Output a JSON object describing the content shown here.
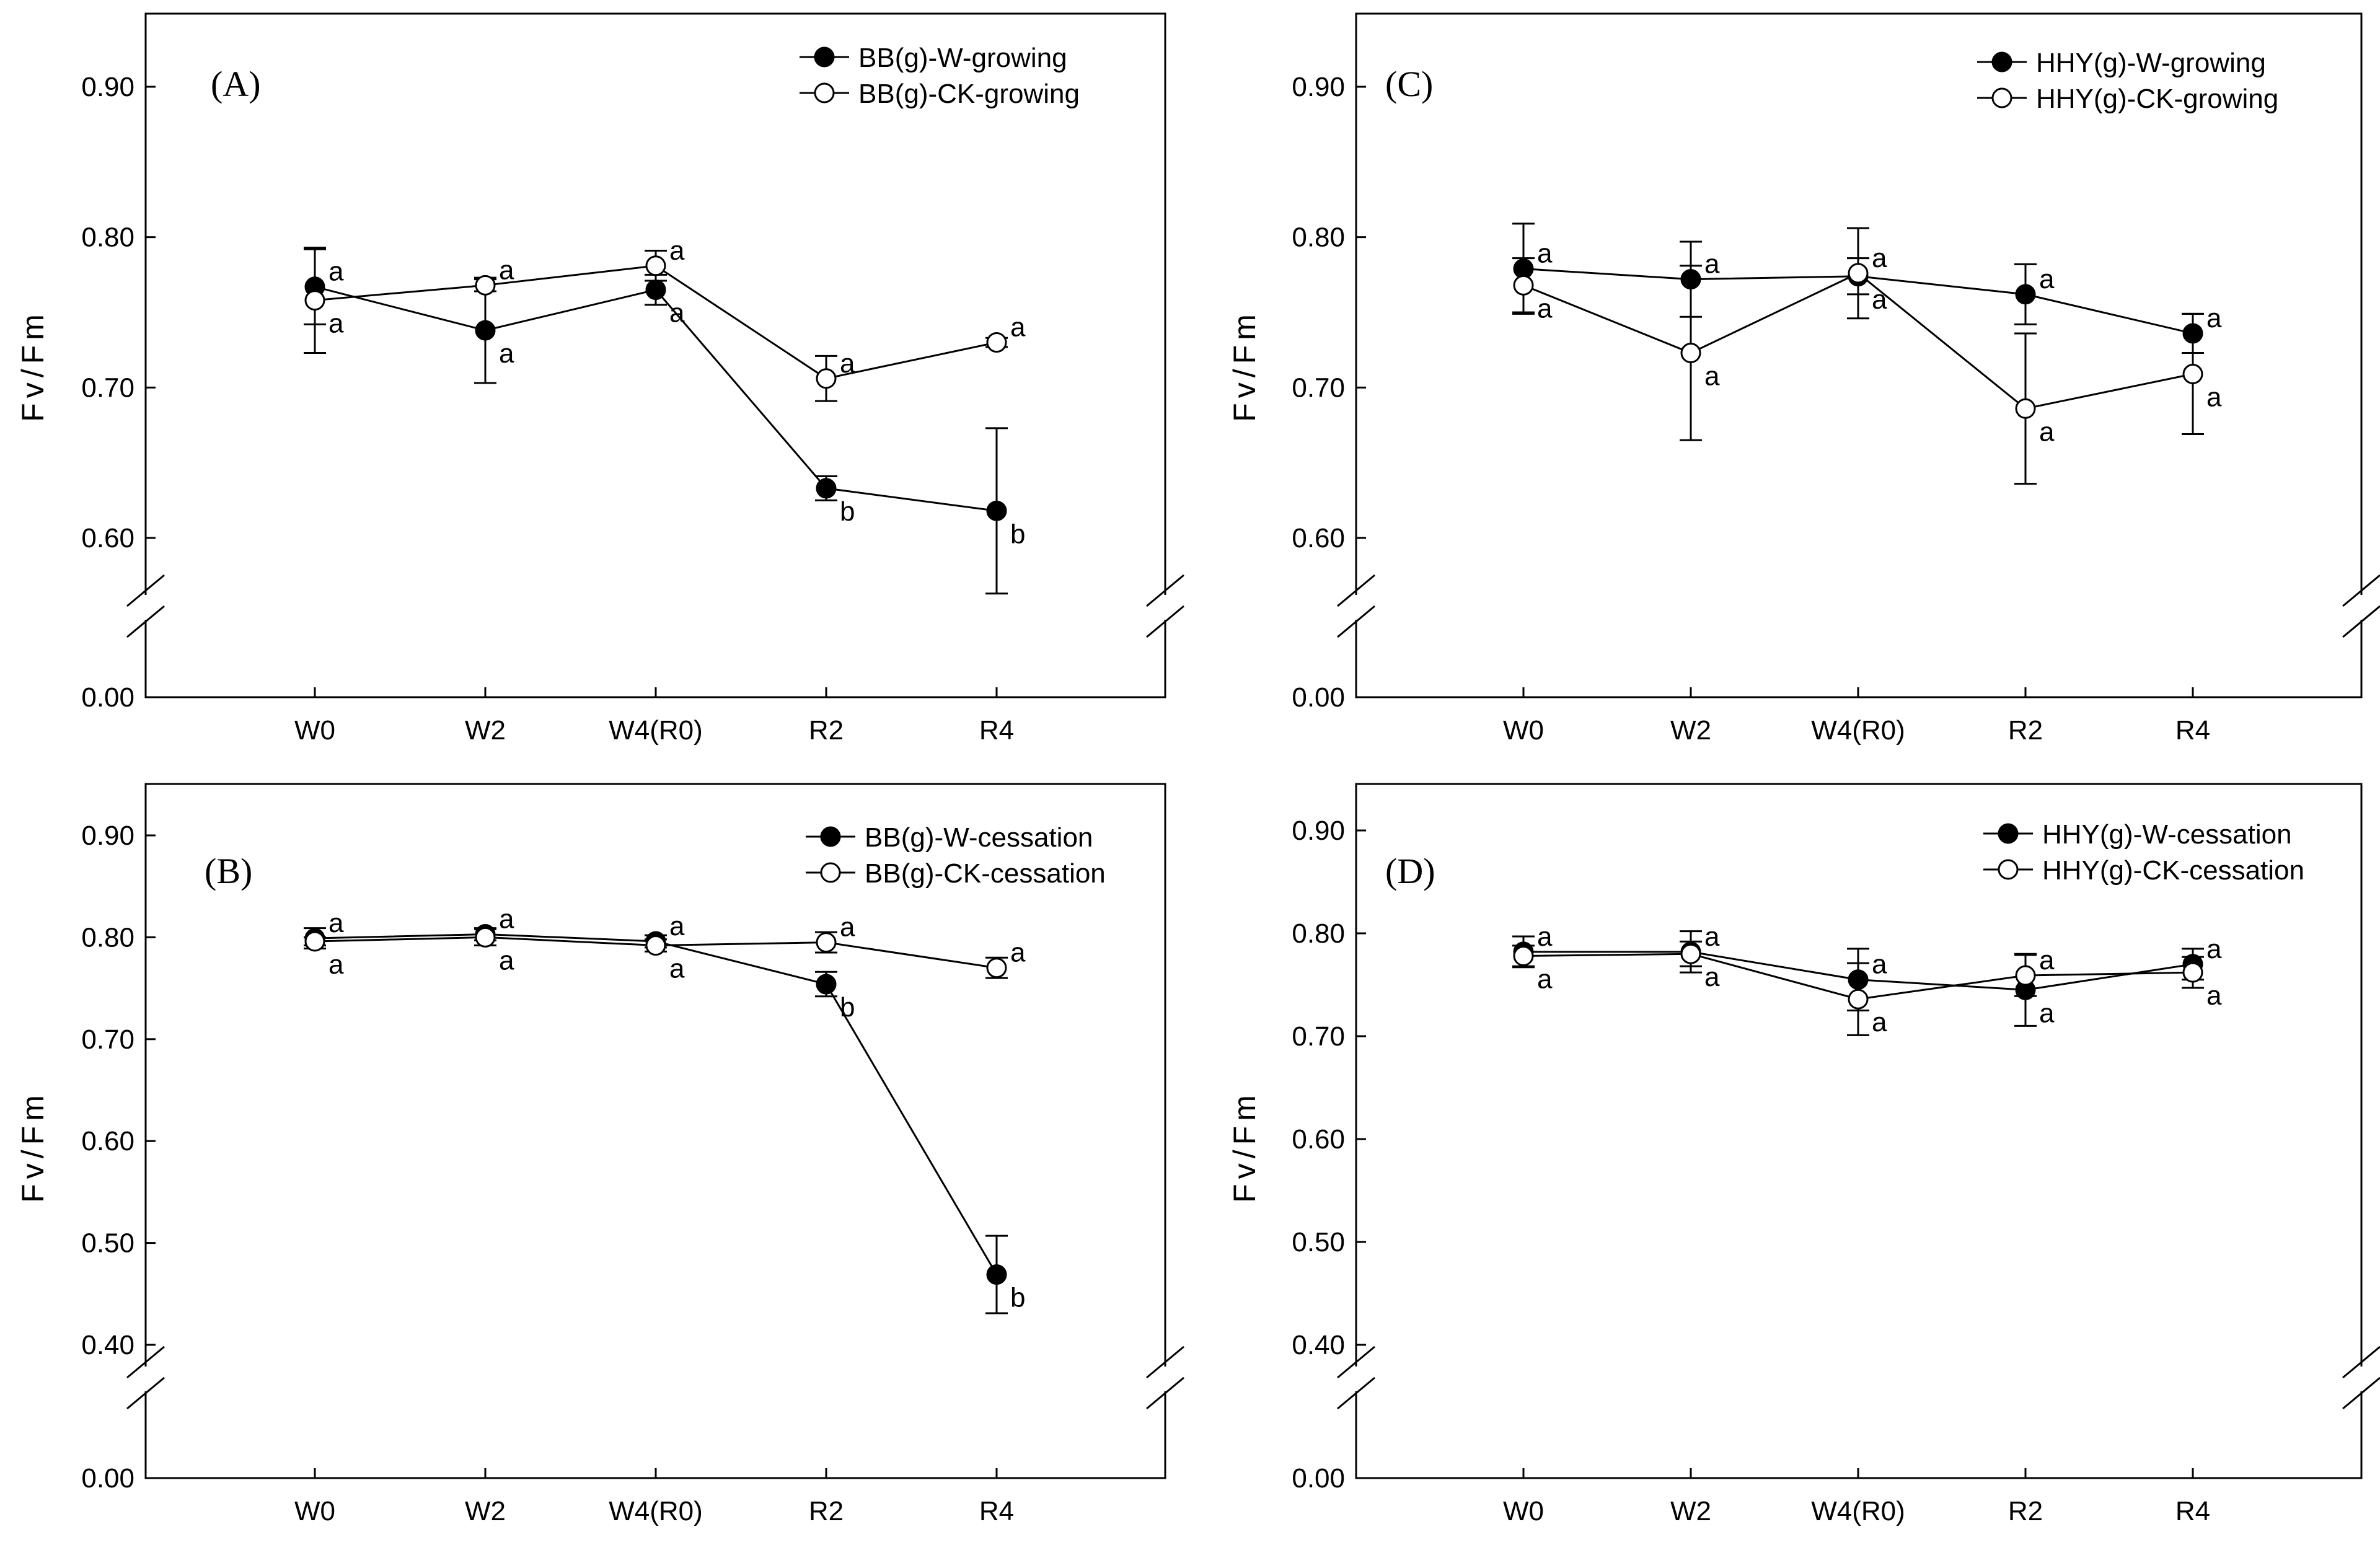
{
  "chart_data": [
    {
      "id": "A",
      "type": "line",
      "panel_label": "(A)",
      "ylabel": "Fv/Fm",
      "xlabel": "",
      "categories": [
        "W0",
        "W2",
        "W4(R0)",
        "R2",
        "R4"
      ],
      "yticks": [
        "0.00",
        "0.60",
        "0.70",
        "0.80",
        "0.90"
      ],
      "ylim_upper": [
        0.55,
        0.95
      ],
      "axis_break": true,
      "legend_position": "top-right",
      "series": [
        {
          "name": "BB(g)-W-growing",
          "marker": "filled-circle",
          "values": [
            0.767,
            0.738,
            0.765,
            0.633,
            0.618
          ],
          "errors": [
            0.025,
            0.035,
            0.01,
            0.008,
            0.055
          ],
          "letters": [
            "a",
            "a",
            "a",
            "b",
            "b"
          ]
        },
        {
          "name": "BB(g)-CK-growing",
          "marker": "open-circle",
          "values": [
            0.758,
            0.768,
            0.781,
            0.706,
            0.73
          ],
          "errors": [
            0.035,
            0.004,
            0.01,
            0.015,
            0.003
          ],
          "letters": [
            "a",
            "a",
            "a",
            "a",
            "a"
          ]
        }
      ]
    },
    {
      "id": "C",
      "type": "line",
      "panel_label": "(C)",
      "ylabel": "Fv/Fm",
      "xlabel": "",
      "categories": [
        "W0",
        "W2",
        "W4(R0)",
        "R2",
        "R4"
      ],
      "yticks": [
        "0.00",
        "0.60",
        "0.70",
        "0.80",
        "0.90"
      ],
      "ylim_upper": [
        0.55,
        0.95
      ],
      "axis_break": true,
      "legend_position": "top-right",
      "series": [
        {
          "name": "HHY(g)-W-growing",
          "marker": "filled-circle",
          "values": [
            0.779,
            0.772,
            0.774,
            0.762,
            0.736
          ],
          "errors": [
            0.03,
            0.025,
            0.012,
            0.02,
            0.013
          ],
          "letters": [
            "a",
            "a",
            "a",
            "a",
            "a"
          ]
        },
        {
          "name": "HHY(g)-CK-growing",
          "marker": "open-circle",
          "values": [
            0.768,
            0.723,
            0.776,
            0.686,
            0.709
          ],
          "errors": [
            0.018,
            0.058,
            0.03,
            0.05,
            0.04
          ],
          "letters": [
            "a",
            "a",
            "a",
            "a",
            "a"
          ]
        }
      ]
    },
    {
      "id": "B",
      "type": "line",
      "panel_label": "(B)",
      "ylabel": "Fv/Fm",
      "xlabel": "",
      "categories": [
        "W0",
        "W2",
        "W4(R0)",
        "R2",
        "R4"
      ],
      "yticks": [
        "0.00",
        "0.40",
        "0.50",
        "0.60",
        "0.70",
        "0.80",
        "0.90"
      ],
      "ylim_upper": [
        0.35,
        0.95
      ],
      "axis_break": true,
      "legend_position": "top-right",
      "series": [
        {
          "name": "BB(g)-W-cessation",
          "marker": "filled-circle",
          "values": [
            0.799,
            0.803,
            0.796,
            0.754,
            0.469
          ],
          "errors": [
            0.01,
            0.006,
            0.006,
            0.012,
            0.038
          ],
          "letters": [
            "a",
            "a",
            "a",
            "b",
            "b"
          ]
        },
        {
          "name": "BB(g)-CK-cessation",
          "marker": "open-circle",
          "values": [
            0.796,
            0.8,
            0.792,
            0.795,
            0.77
          ],
          "errors": [
            0.004,
            0.008,
            0.006,
            0.01,
            0.01
          ],
          "letters": [
            "a",
            "a",
            "a",
            "a",
            "a"
          ]
        }
      ]
    },
    {
      "id": "D",
      "type": "line",
      "panel_label": "(D)",
      "ylabel": "Fv/Fm",
      "xlabel": "",
      "categories": [
        "W0",
        "W2",
        "W4(R0)",
        "R2",
        "R4"
      ],
      "yticks": [
        "0.00",
        "0.40",
        "0.50",
        "0.60",
        "0.70",
        "0.80",
        "0.90"
      ],
      "ylim_upper": [
        0.35,
        0.95
      ],
      "axis_break": true,
      "legend_position": "top-right",
      "series": [
        {
          "name": "HHY(g)-W-cessation",
          "marker": "filled-circle",
          "values": [
            0.782,
            0.782,
            0.755,
            0.745,
            0.77
          ],
          "errors": [
            0.015,
            0.02,
            0.03,
            0.035,
            0.015
          ],
          "letters": [
            "a",
            "a",
            "a",
            "a",
            "a"
          ]
        },
        {
          "name": "HHY(g)-CK-cessation",
          "marker": "open-circle",
          "values": [
            0.778,
            0.78,
            0.736,
            0.759,
            0.762
          ],
          "errors": [
            0.01,
            0.012,
            0.035,
            0.02,
            0.015
          ],
          "letters": [
            "a",
            "a",
            "a",
            "a",
            "a"
          ]
        }
      ]
    }
  ]
}
